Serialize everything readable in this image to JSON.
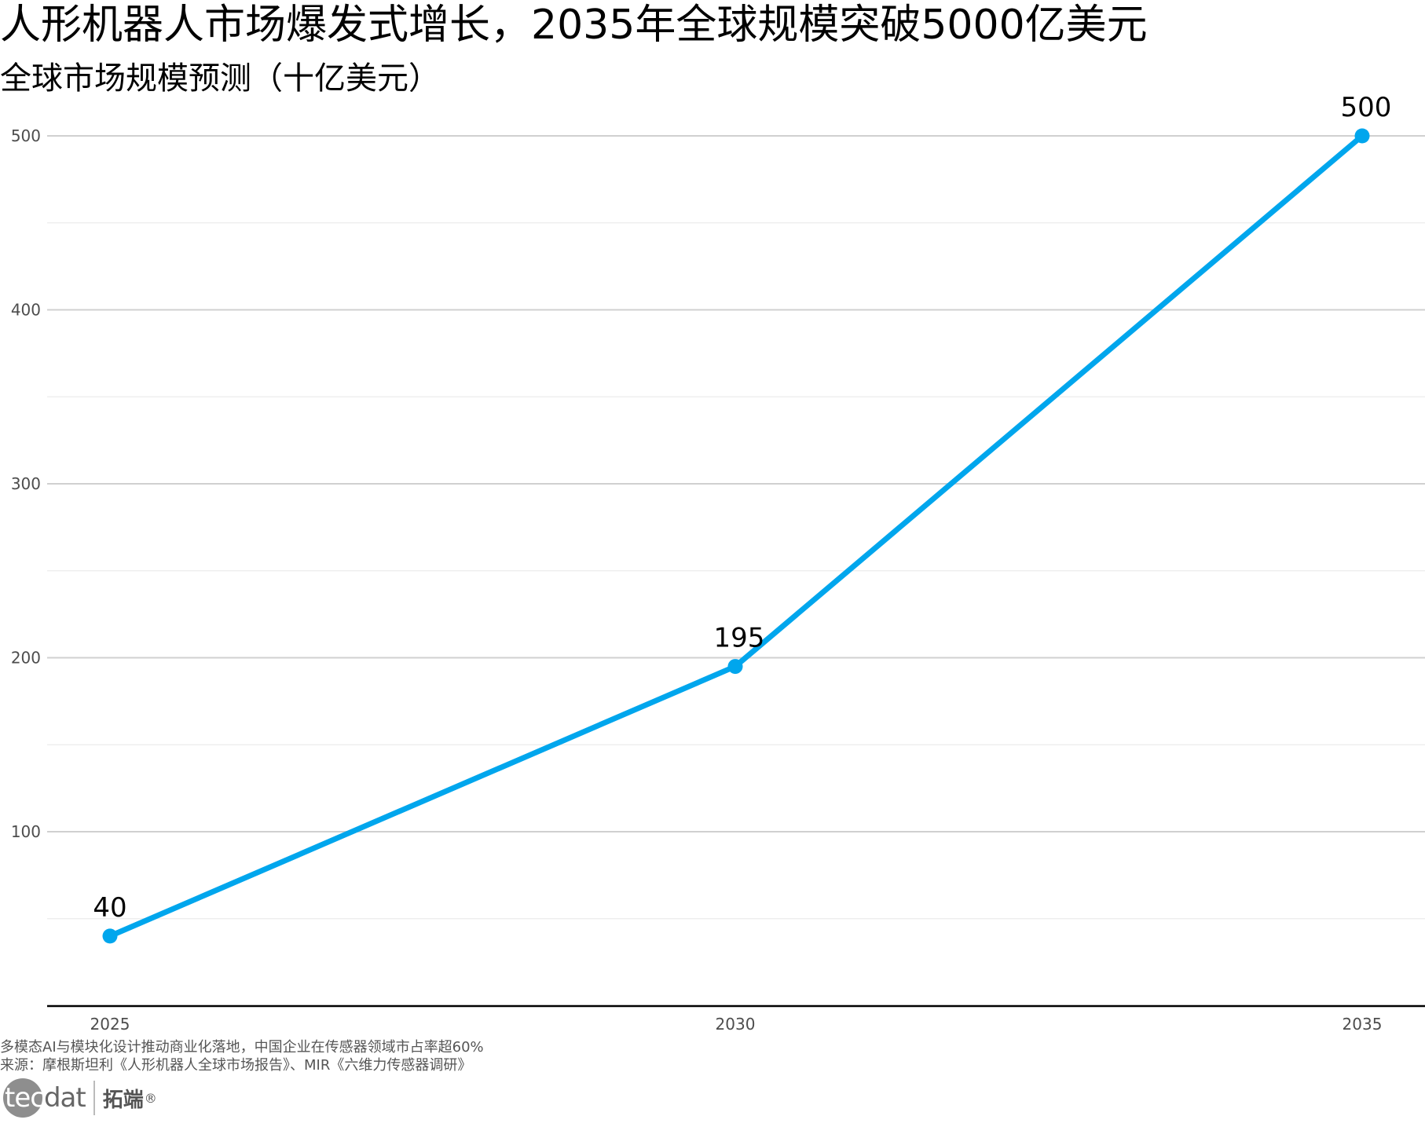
{
  "title": "人形机器人市场爆发式增长，2035年全球规模突破5000亿美元",
  "subtitle": "全球市场规模预测（十亿美元）",
  "chart_data": {
    "type": "line",
    "title": "人形机器人市场爆发式增长，2035年全球规模突破5000亿美元",
    "subtitle": "全球市场规模预测（十亿美元）",
    "xlabel": "",
    "ylabel": "",
    "x": [
      "2025",
      "2030",
      "2035"
    ],
    "series": [
      {
        "values": [
          40,
          195,
          500
        ],
        "color": "#00a6ed"
      }
    ],
    "data_labels": [
      "40",
      "195",
      "500"
    ],
    "ylim": [
      0,
      500
    ],
    "y_ticks": [
      100,
      200,
      300,
      400,
      500
    ],
    "x_ticks": [
      "2025",
      "2030",
      "2035"
    ],
    "grid": true,
    "legend": "none"
  },
  "caption": {
    "note": "多模态AI与模块化设计推动商业化落地，中国企业在传感器领域市占率超60%",
    "source": "来源：摩根斯坦利《人形机器人全球市场报告》、MIR《六维力传感器调研》"
  },
  "brand": {
    "logo_part1": "tec",
    "logo_part2": "dat",
    "name_cn": "拓端",
    "reg": "®"
  },
  "colors": {
    "line": "#00a6ed",
    "grid": "#d0d0d0",
    "axis": "#000000"
  }
}
